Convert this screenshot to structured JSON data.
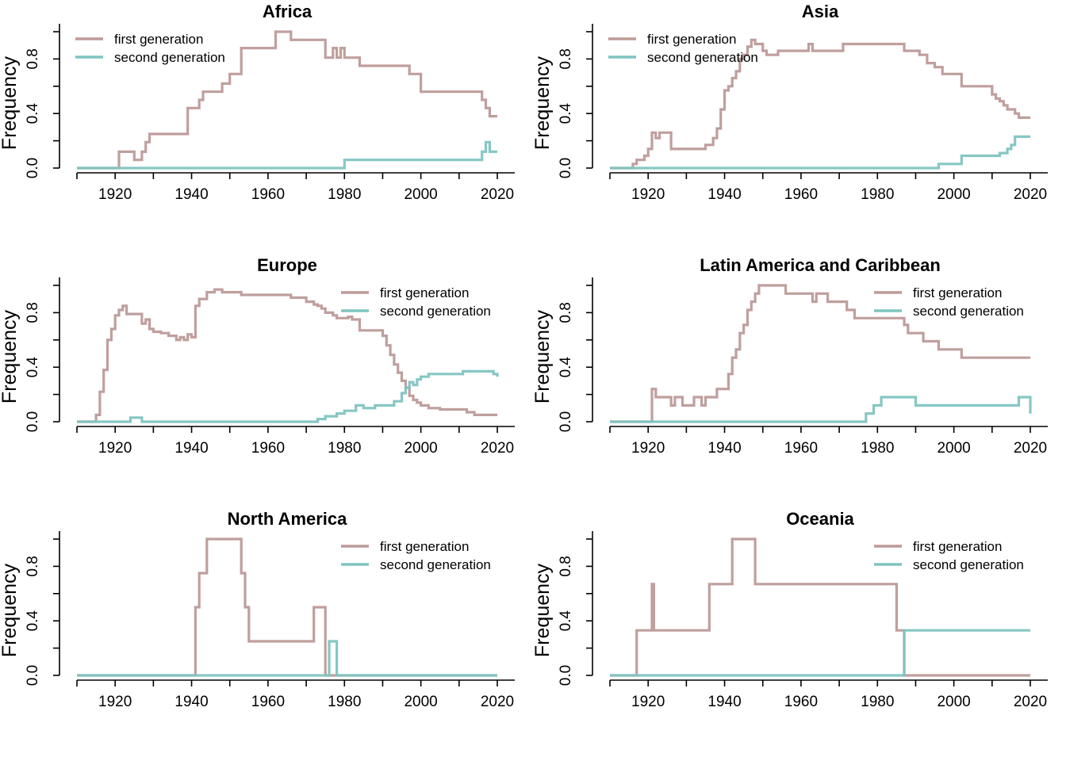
{
  "chart_data": [
    {
      "type": "line",
      "title": "Africa",
      "ylabel": "Frequency",
      "xlim": [
        1910,
        2020
      ],
      "ylim": [
        0,
        1
      ],
      "xticks": [
        "1920",
        "1940",
        "1960",
        "1980",
        "2000",
        "2020"
      ],
      "yticks": [
        "0.0",
        "0.4",
        "0.8"
      ],
      "legend": "top-left",
      "series": [
        {
          "name": "first generation",
          "color": "#BC9A98",
          "step": true,
          "x": [
            1910,
            1921,
            1925,
            1927,
            1928,
            1929,
            1939,
            1941,
            1942,
            1943,
            1945,
            1948,
            1950,
            1953,
            1958,
            1962,
            1966,
            1974,
            1975,
            1977,
            1978,
            1979,
            1980,
            1984,
            1990,
            1994,
            1997,
            2000,
            2012,
            2016,
            2017,
            2018,
            2020
          ],
          "y": [
            0,
            0.12,
            0.06,
            0.12,
            0.19,
            0.25,
            0.44,
            0.44,
            0.5,
            0.56,
            0.56,
            0.62,
            0.69,
            0.88,
            0.88,
            1.0,
            0.94,
            0.94,
            0.81,
            0.88,
            0.81,
            0.88,
            0.81,
            0.75,
            0.75,
            0.75,
            0.69,
            0.56,
            0.56,
            0.5,
            0.44,
            0.38,
            0.38
          ]
        },
        {
          "name": "second generation",
          "color": "#7FC4C1",
          "step": true,
          "x": [
            1910,
            1980,
            2016,
            2017,
            2018,
            2020
          ],
          "y": [
            0,
            0.06,
            0.12,
            0.19,
            0.12,
            0.12
          ]
        }
      ]
    },
    {
      "type": "line",
      "title": "Asia",
      "ylabel": "Frequency",
      "xlim": [
        1910,
        2020
      ],
      "ylim": [
        0,
        1
      ],
      "xticks": [
        "1920",
        "1940",
        "1960",
        "1980",
        "2000",
        "2020"
      ],
      "yticks": [
        "0.0",
        "0.4",
        "0.8"
      ],
      "legend": "top-left",
      "series": [
        {
          "name": "first generation",
          "color": "#BC9A98",
          "step": true,
          "x": [
            1910,
            1916,
            1917,
            1919,
            1920,
            1921,
            1922,
            1923,
            1926,
            1935,
            1937,
            1938,
            1939,
            1940,
            1941,
            1942,
            1943,
            1944,
            1945,
            1946,
            1947,
            1948,
            1950,
            1951,
            1952,
            1954,
            1962,
            1963,
            1971,
            1980,
            1987,
            1991,
            1993,
            1995,
            1997,
            2002,
            2005,
            2010,
            2011,
            2012,
            2013,
            2014,
            2016,
            2017,
            2020
          ],
          "y": [
            0,
            0.03,
            0.06,
            0.09,
            0.14,
            0.26,
            0.22,
            0.26,
            0.14,
            0.17,
            0.22,
            0.29,
            0.43,
            0.57,
            0.6,
            0.66,
            0.71,
            0.8,
            0.83,
            0.89,
            0.94,
            0.91,
            0.86,
            0.83,
            0.83,
            0.86,
            0.91,
            0.86,
            0.91,
            0.91,
            0.86,
            0.83,
            0.77,
            0.74,
            0.69,
            0.6,
            0.6,
            0.54,
            0.51,
            0.49,
            0.46,
            0.43,
            0.4,
            0.37,
            0.37
          ]
        },
        {
          "name": "second generation",
          "color": "#7FC4C1",
          "step": true,
          "x": [
            1910,
            1996,
            2002,
            2012,
            2014,
            2015,
            2016,
            2020
          ],
          "y": [
            0,
            0.03,
            0.09,
            0.11,
            0.14,
            0.17,
            0.23,
            0.23
          ]
        }
      ]
    },
    {
      "type": "line",
      "title": "Europe",
      "ylabel": "Frequency",
      "xlim": [
        1910,
        2020
      ],
      "ylim": [
        0,
        1
      ],
      "xticks": [
        "1920",
        "1940",
        "1960",
        "1980",
        "2000",
        "2020"
      ],
      "yticks": [
        "0.0",
        "0.4",
        "0.8"
      ],
      "legend": "top-right",
      "series": [
        {
          "name": "first generation",
          "color": "#BC9A98",
          "step": true,
          "x": [
            1910,
            1915,
            1916,
            1917,
            1918,
            1919,
            1920,
            1921,
            1922,
            1923,
            1926,
            1927,
            1928,
            1929,
            1930,
            1932,
            1934,
            1936,
            1937,
            1938,
            1939,
            1940,
            1941,
            1942,
            1944,
            1946,
            1948,
            1953,
            1965,
            1966,
            1970,
            1972,
            1973,
            1974,
            1975,
            1977,
            1978,
            1981,
            1982,
            1984,
            1988,
            1990,
            1991,
            1992,
            1993,
            1994,
            1995,
            1996,
            1997,
            1998,
            1999,
            2000,
            2002,
            2005,
            2012,
            2014,
            2020
          ],
          "y": [
            0,
            0.05,
            0.22,
            0.38,
            0.6,
            0.68,
            0.78,
            0.82,
            0.85,
            0.79,
            0.79,
            0.72,
            0.75,
            0.68,
            0.66,
            0.65,
            0.63,
            0.6,
            0.62,
            0.6,
            0.64,
            0.62,
            0.85,
            0.9,
            0.95,
            0.97,
            0.95,
            0.93,
            0.93,
            0.91,
            0.88,
            0.86,
            0.85,
            0.83,
            0.8,
            0.78,
            0.76,
            0.77,
            0.75,
            0.67,
            0.67,
            0.63,
            0.56,
            0.49,
            0.42,
            0.36,
            0.3,
            0.25,
            0.19,
            0.16,
            0.14,
            0.12,
            0.1,
            0.09,
            0.07,
            0.05,
            0.05
          ]
        },
        {
          "name": "second generation",
          "color": "#7FC4C1",
          "step": true,
          "x": [
            1910,
            1914,
            1924,
            1927,
            1965,
            1968,
            1973,
            1975,
            1978,
            1980,
            1983,
            1985,
            1988,
            1993,
            1995,
            1996,
            1997,
            1998,
            1999,
            2000,
            2002,
            2007,
            2011,
            2015,
            2019,
            2020
          ],
          "y": [
            0,
            0,
            0.03,
            0,
            0,
            0,
            0.02,
            0.04,
            0.06,
            0.08,
            0.12,
            0.1,
            0.12,
            0.15,
            0.21,
            0.25,
            0.29,
            0.27,
            0.31,
            0.33,
            0.35,
            0.35,
            0.37,
            0.37,
            0.35,
            0.33
          ]
        }
      ]
    },
    {
      "type": "line",
      "title": "Latin America and Caribbean",
      "ylabel": "Frequency",
      "xlim": [
        1910,
        2020
      ],
      "ylim": [
        0,
        1
      ],
      "xticks": [
        "1920",
        "1940",
        "1960",
        "1980",
        "2000",
        "2020"
      ],
      "yticks": [
        "0.0",
        "0.4",
        "0.8"
      ],
      "legend": "top-right",
      "series": [
        {
          "name": "first generation",
          "color": "#BC9A98",
          "step": true,
          "x": [
            1910,
            1921,
            1922,
            1926,
            1927,
            1929,
            1931,
            1932,
            1934,
            1935,
            1936,
            1937,
            1938,
            1939,
            1941,
            1942,
            1943,
            1944,
            1945,
            1946,
            1947,
            1948,
            1949,
            1956,
            1962,
            1963,
            1964,
            1967,
            1972,
            1974,
            1976,
            1987,
            1988,
            1990,
            1992,
            1996,
            2002,
            2020
          ],
          "y": [
            0,
            0.24,
            0.18,
            0.12,
            0.18,
            0.12,
            0.12,
            0.18,
            0.12,
            0.18,
            0.18,
            0.18,
            0.24,
            0.24,
            0.35,
            0.47,
            0.53,
            0.65,
            0.71,
            0.82,
            0.88,
            0.94,
            1.0,
            0.94,
            0.94,
            0.88,
            0.94,
            0.88,
            0.82,
            0.76,
            0.76,
            0.71,
            0.65,
            0.65,
            0.59,
            0.53,
            0.47,
            0.47
          ]
        },
        {
          "name": "second generation",
          "color": "#7FC4C1",
          "step": true,
          "x": [
            1910,
            1977,
            1979,
            1981,
            1982,
            1990,
            2017,
            2019,
            2020
          ],
          "y": [
            0,
            0.06,
            0.12,
            0.18,
            0.18,
            0.12,
            0.18,
            0.18,
            0.06
          ]
        }
      ]
    },
    {
      "type": "line",
      "title": "North America",
      "ylabel": "Frequency",
      "xlim": [
        1910,
        2020
      ],
      "ylim": [
        0,
        1
      ],
      "xticks": [
        "1920",
        "1940",
        "1960",
        "1980",
        "2000",
        "2020"
      ],
      "yticks": [
        "0.0",
        "0.4",
        "0.8"
      ],
      "legend": "top-right",
      "series": [
        {
          "name": "first generation",
          "color": "#BC9A98",
          "step": true,
          "x": [
            1910,
            1941,
            1942,
            1944,
            1953,
            1954,
            1955,
            1972,
            1975,
            1976,
            2020
          ],
          "y": [
            0,
            0.5,
            0.75,
            1.0,
            0.75,
            0.5,
            0.25,
            0.5,
            0,
            0,
            0
          ]
        },
        {
          "name": "second generation",
          "color": "#7FC4C1",
          "step": true,
          "x": [
            1910,
            1976,
            1978,
            2020
          ],
          "y": [
            0,
            0.25,
            0,
            0
          ]
        }
      ]
    },
    {
      "type": "line",
      "title": "Oceania",
      "ylabel": "Frequency",
      "xlim": [
        1910,
        2020
      ],
      "ylim": [
        0,
        1
      ],
      "xticks": [
        "1920",
        "1940",
        "1960",
        "1980",
        "2000",
        "2020"
      ],
      "yticks": [
        "0.0",
        "0.4",
        "0.8"
      ],
      "legend": "top-right",
      "series": [
        {
          "name": "first generation",
          "color": "#BC9A98",
          "step": true,
          "x": [
            1910,
            1917,
            1921,
            1921.5,
            1922,
            1936,
            1942,
            1948,
            1985,
            1987,
            2020
          ],
          "y": [
            0,
            0.33,
            0.67,
            0.33,
            0.33,
            0.67,
            1.0,
            0.67,
            0.33,
            0,
            0
          ]
        },
        {
          "name": "second generation",
          "color": "#7FC4C1",
          "step": true,
          "x": [
            1910,
            1987,
            2020
          ],
          "y": [
            0,
            0.33,
            0.33
          ]
        }
      ]
    }
  ]
}
